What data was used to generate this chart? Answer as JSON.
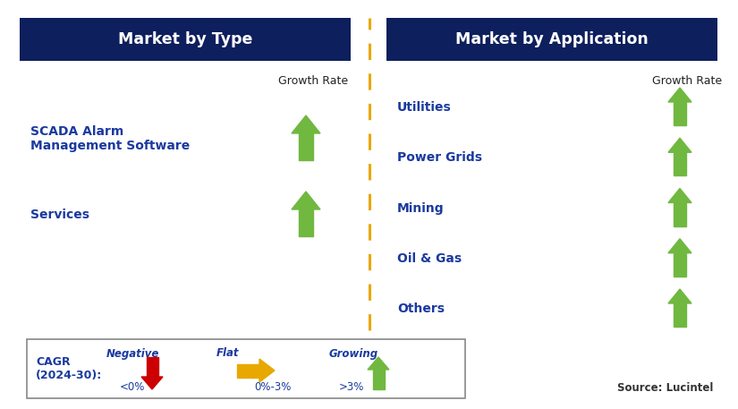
{
  "left_header": "Market by Type",
  "right_header": "Market by Application",
  "header_bg_color": "#0d1f5c",
  "header_text_color": "#ffffff",
  "left_items": [
    "SCADA Alarm\nManagement Software",
    "Services"
  ],
  "right_items": [
    "Utilities",
    "Power Grids",
    "Mining",
    "Oil & Gas",
    "Others"
  ],
  "item_color": "#1a3a9f",
  "growth_rate_label": "Growth Rate",
  "arrow_up_color": "#70b840",
  "arrow_down_color": "#cc0000",
  "arrow_flat_color": "#e8a800",
  "divider_color": "#e8a800",
  "legend_cagr_label": "CAGR\n(2024-30):",
  "legend_negative_label": "Negative",
  "legend_negative_sub": "<0%",
  "legend_flat_label": "Flat",
  "legend_flat_sub": "0%-3%",
  "legend_growing_label": "Growing",
  "legend_growing_sub": ">3%",
  "source_text": "Source: Lucintel",
  "bg_color": "#ffffff",
  "figw": 8.25,
  "figh": 4.57,
  "dpi": 100
}
